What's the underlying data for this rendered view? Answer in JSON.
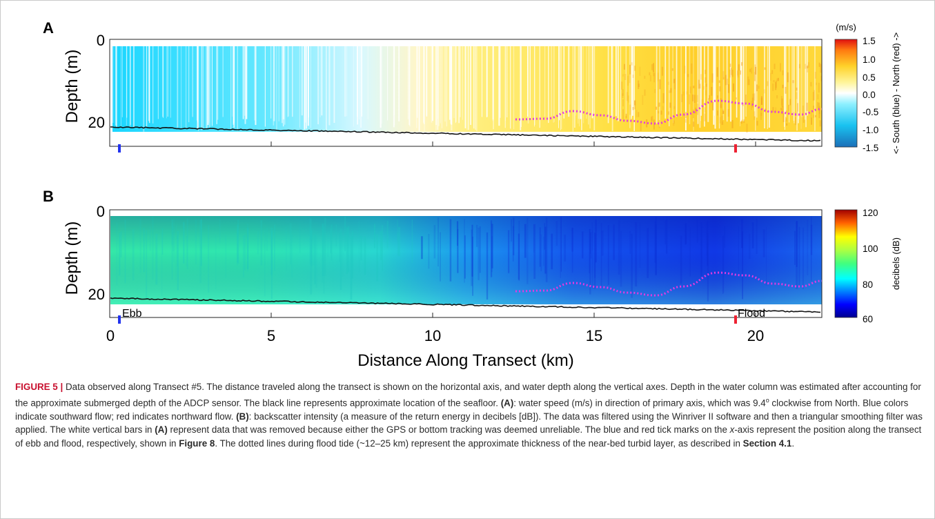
{
  "panels": [
    {
      "letter": "A",
      "ylabel": "Depth (m)",
      "y_ticks": [
        "0",
        "20"
      ],
      "colorbar": {
        "unit": "(m/s)",
        "label": "<- South (blue) - North (red) ->",
        "ticks": [
          "1.5",
          "1.0",
          "0.5",
          "0.0",
          "-0.5",
          "-1.0",
          "-1.5"
        ],
        "colormap": "blue-cyan-white-yellow-orange-red",
        "range": [
          -1.5,
          1.5
        ]
      },
      "markers": [
        {
          "label": "",
          "x_km": 0.35,
          "color": "#2233ee"
        },
        {
          "label": "",
          "x_km": 19.35,
          "color": "#ee2233"
        }
      ]
    },
    {
      "letter": "B",
      "ylabel": "Depth (m)",
      "y_ticks": [
        "0",
        "20"
      ],
      "colorbar": {
        "unit": "",
        "label": "decibels (dB)",
        "ticks": [
          "120",
          "100",
          "80",
          "60"
        ],
        "colormap": "jet",
        "range": [
          60,
          120
        ]
      },
      "markers": [
        {
          "label": "Ebb",
          "x_km": 0.35,
          "color": "#2233ee"
        },
        {
          "label": "Flood",
          "x_km": 19.35,
          "color": "#ee2233"
        }
      ]
    }
  ],
  "x_axis": {
    "label": "Distance Along Transect (km)",
    "ticks": [
      "0",
      "5",
      "10",
      "15",
      "20"
    ],
    "range_km": [
      0,
      22.1
    ]
  },
  "colors": {
    "seafloor_line": "#111111",
    "turbid_layer_dots": "#e23ae0"
  },
  "caption": {
    "figure_label": "FIGURE 5 |",
    "text_1": " Data observed along Transect #5. The distance traveled along the transect is shown on the horizontal axis, and water depth along the vertical axes. Depth in the water column was estimated after accounting for the approximate submerged depth of the ADCP sensor. The black line represents approximate location of the seafloor. ",
    "ref_a1": "(A)",
    "text_2": ": water speed (m/s) in direction of primary axis, which was 9.4",
    "degree": "o",
    "text_3": " clockwise from North. Blue colors indicate southward flow; red indicates northward flow. ",
    "ref_b": "(B)",
    "text_4": ": backscatter intensity (a measure of the return energy in decibels [dB]). The data was filtered using the Winriver II software and then a triangular smoothing filter was applied. The white vertical bars in ",
    "ref_a2": "(A)",
    "text_5": " represent data that was removed because either the GPS or bottom tracking was deemed unreliable. The blue and red tick marks on the ",
    "x_italic": "x",
    "text_6": "-axis represent the position along the transect of ebb and flood, respectively, shown in ",
    "ref_fig8": "Figure 8",
    "text_7": ". The dotted lines during flood tide (~12–25 km) represent the approximate thickness of the near-bed turbid layer, as described in ",
    "ref_section": "Section 4.1",
    "text_8": "."
  }
}
